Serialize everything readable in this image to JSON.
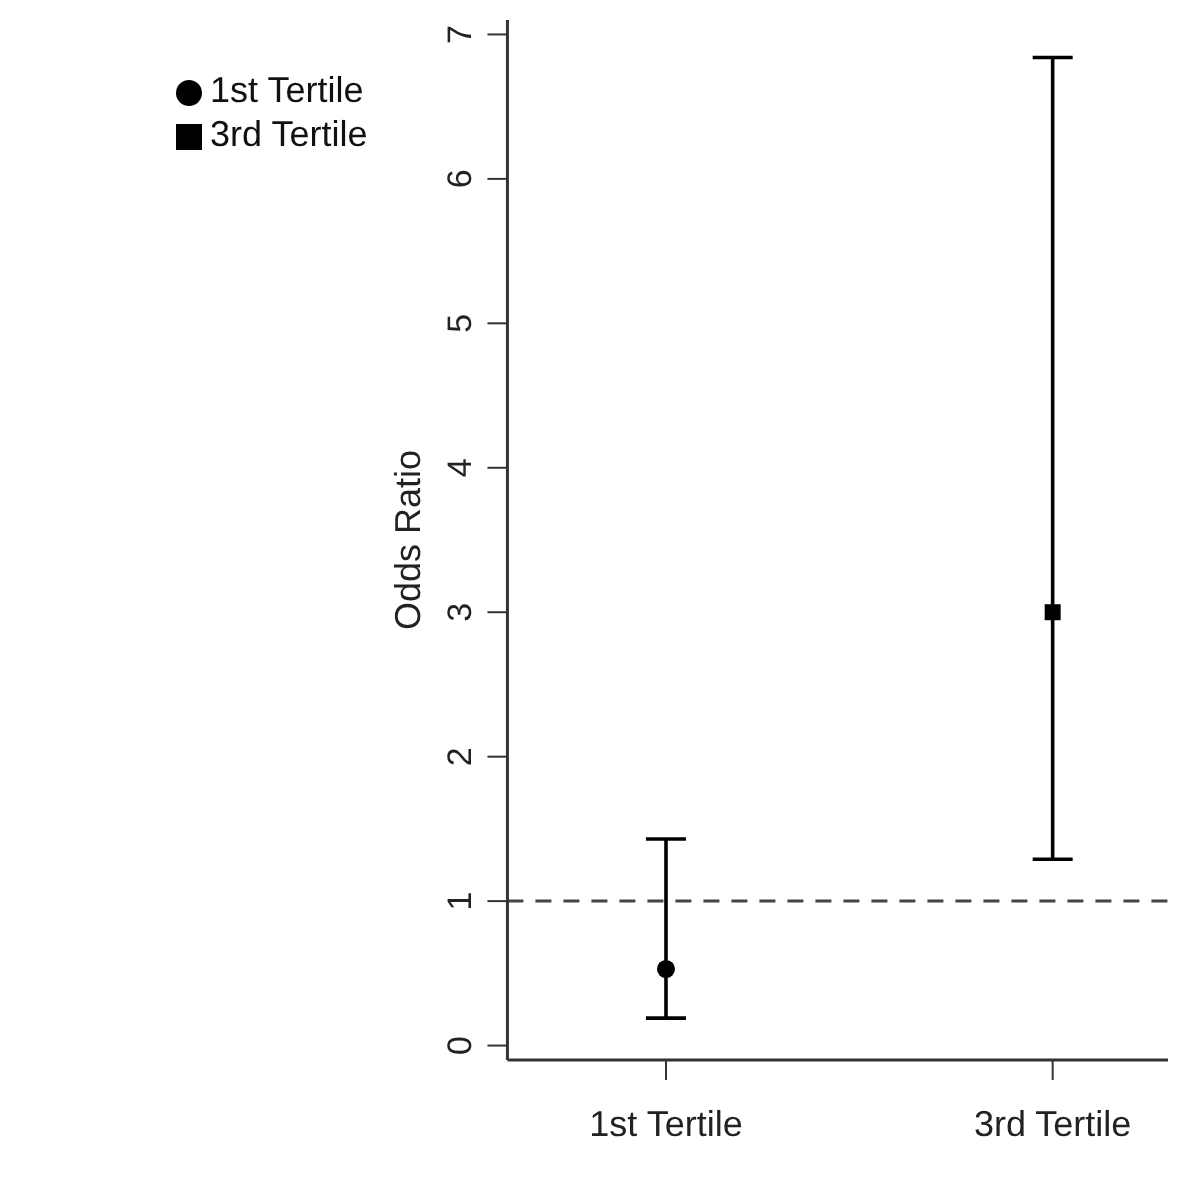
{
  "chart_data": {
    "type": "scatter",
    "ylabel": "Odds Ratio",
    "categories": [
      "1st Tertile",
      "3rd Tertile"
    ],
    "series": [
      {
        "name": "1st Tertile",
        "color": "#000000",
        "marker": "circle",
        "values": [
          0.53,
          null
        ],
        "errors": [
          [
            0.19,
            1.43
          ],
          null
        ]
      },
      {
        "name": "3rd Tertile",
        "color": "#000000",
        "marker": "square",
        "values": [
          null,
          3.0
        ],
        "errors": [
          null,
          [
            1.29,
            6.84
          ]
        ]
      }
    ],
    "ylim": [
      -0.1,
      7.1
    ],
    "yticks": [
      0,
      1,
      2,
      3,
      4,
      5,
      6,
      7
    ],
    "ref_lines": [
      {
        "axis": "y",
        "value": 1,
        "line_style": "dashed",
        "color": "#444444"
      }
    ],
    "grid": false,
    "legend": "top left"
  }
}
